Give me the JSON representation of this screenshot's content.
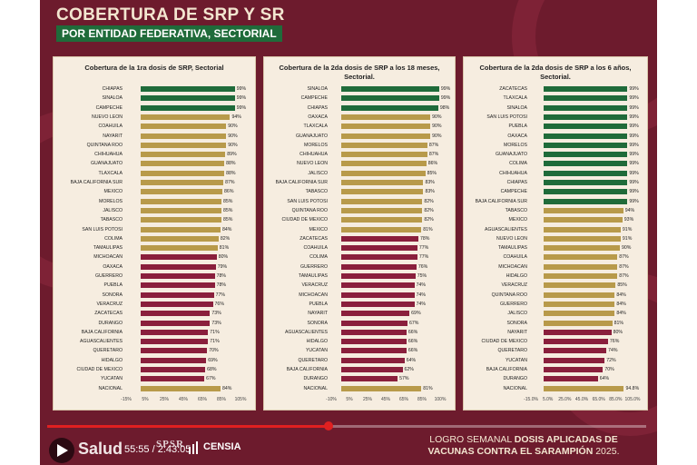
{
  "slide": {
    "title": "COBERTURA DE SRP Y SR",
    "subtitle": "POR ENTIDAD FEDERATIVA, SECTORIAL",
    "footer_prefix": "LOGRO SEMANAL ",
    "footer_bold1": "DOSIS APLICADAS DE",
    "footer_bold2": "VACUNAS CONTRA EL SARAMPIÓN",
    "footer_suffix": " 2025."
  },
  "player": {
    "channel": "Salud",
    "timecode": "55:55 / 2:43:05",
    "logo1": "SPSR",
    "logo2": "CENSIA",
    "progress_fraction": 0.47
  },
  "colors": {
    "green": "#1f6b3a",
    "gold": "#b89a4a",
    "maroon": "#8a1f3c"
  },
  "chart_data": [
    {
      "type": "bar",
      "title": "Cobertura de la 1ra dosis de SRP, Sectorial",
      "xticks": [
        "-15%",
        "5%",
        "25%",
        "45%",
        "65%",
        "85%",
        "105%"
      ],
      "xlim": [
        -15,
        105
      ],
      "categories": [
        "CHIAPAS",
        "SINALOA",
        "CAMPECHE",
        "NUEVO LEON",
        "COAHUILA",
        "NAYARIT",
        "QUINTANA ROO",
        "CHIHUAHUA",
        "GUANAJUATO",
        "TLAXCALA",
        "BAJA CALIFORNIA SUR",
        "MEXICO",
        "MORELOS",
        "JALISCO",
        "TABASCO",
        "SAN LUIS POTOSI",
        "COLIMA",
        "TAMAULIPAS",
        "MICHOACAN",
        "OAXACA",
        "GUERRERO",
        "PUEBLA",
        "SONORA",
        "VERACRUZ",
        "ZACATECAS",
        "DURANGO",
        "BAJA CALIFORNIA",
        "AGUASCALIENTES",
        "QUERETARO",
        "HIDALGO",
        "CIUDAD DE MEXICO",
        "YUCATAN",
        "NACIONAL"
      ],
      "values": [
        99,
        99,
        99,
        94,
        90,
        90,
        90,
        89,
        88,
        88,
        87,
        86,
        85,
        85,
        85,
        84,
        82,
        81,
        80,
        79,
        78,
        78,
        77,
        76,
        73,
        73,
        71,
        71,
        70,
        69,
        68,
        67,
        84
      ],
      "labels": [
        "99%",
        "99%",
        "99%",
        "94%",
        "90%",
        "90%",
        "90%",
        "89%",
        "88%",
        "88%",
        "87%",
        "86%",
        "85%",
        "85%",
        "85%",
        "84%",
        "82%",
        "81%",
        "80%",
        "79%",
        "78%",
        "78%",
        "77%",
        "76%",
        "73%",
        "73%",
        "71%",
        "71%",
        "70%",
        "69%",
        "68%",
        "67%",
        "84%"
      ],
      "colors": [
        "green",
        "green",
        "green",
        "gold",
        "gold",
        "gold",
        "gold",
        "gold",
        "gold",
        "gold",
        "gold",
        "gold",
        "gold",
        "gold",
        "gold",
        "gold",
        "gold",
        "gold",
        "maroon",
        "maroon",
        "maroon",
        "maroon",
        "maroon",
        "maroon",
        "maroon",
        "maroon",
        "maroon",
        "maroon",
        "maroon",
        "maroon",
        "maroon",
        "maroon",
        "gold"
      ]
    },
    {
      "type": "bar",
      "title": "Cobertura de la 2da dosis de SRP a los 18 meses, Sectorial.",
      "xticks": [
        "-10%",
        "5%",
        "25%",
        "45%",
        "65%",
        "85%",
        "100%"
      ],
      "xlim": [
        -10,
        100
      ],
      "categories": [
        "SINALOA",
        "CAMPECHE",
        "CHIAPAS",
        "OAXACA",
        "TLAXCALA",
        "GUANAJUATO",
        "MORELOS",
        "CHIHUAHUA",
        "NUEVO LEON",
        "JALISCO",
        "BAJA CALIFORNIA SUR",
        "TABASCO",
        "SAN LUIS POTOSI",
        "QUINTANA ROO",
        "CIUDAD DE MEXICO",
        "MEXICO",
        "ZACATECAS",
        "COAHUILA",
        "COLIMA",
        "GUERRERO",
        "TAMAULIPAS",
        "VERACRUZ",
        "MICHOACAN",
        "PUEBLA",
        "NAYARIT",
        "SONORA",
        "AGUASCALIENTES",
        "HIDALGO",
        "YUCATAN",
        "QUERETARO",
        "BAJA CALIFORNIA",
        "DURANGO",
        "NACIONAL"
      ],
      "values": [
        99,
        99,
        98,
        90,
        90,
        90,
        87,
        87,
        86,
        85,
        83,
        83,
        82,
        82,
        82,
        81,
        78,
        77,
        77,
        76,
        75,
        74,
        74,
        74,
        69,
        67,
        66,
        66,
        66,
        64,
        62,
        57,
        81
      ],
      "labels": [
        "99%",
        "99%",
        "98%",
        "90%",
        "90%",
        "90%",
        "87%",
        "87%",
        "86%",
        "85%",
        "83%",
        "83%",
        "82%",
        "82%",
        "82%",
        "81%",
        "78%",
        "77%",
        "77%",
        "76%",
        "75%",
        "74%",
        "74%",
        "74%",
        "69%",
        "67%",
        "66%",
        "66%",
        "66%",
        "64%",
        "62%",
        "57%",
        "81%"
      ],
      "colors": [
        "green",
        "green",
        "green",
        "gold",
        "gold",
        "gold",
        "gold",
        "gold",
        "gold",
        "gold",
        "gold",
        "gold",
        "gold",
        "gold",
        "gold",
        "gold",
        "maroon",
        "maroon",
        "maroon",
        "maroon",
        "maroon",
        "maroon",
        "maroon",
        "maroon",
        "maroon",
        "maroon",
        "maroon",
        "maroon",
        "maroon",
        "maroon",
        "maroon",
        "maroon",
        "gold"
      ]
    },
    {
      "type": "bar",
      "title": "Cobertura de la 2da dosis de SRP a los 6 años, Sectorial.",
      "xticks": [
        "-15.0%",
        "5.0%",
        "25.0%",
        "45.0%",
        "65.0%",
        "85.0%",
        "105.0%"
      ],
      "xlim": [
        -15,
        105
      ],
      "categories": [
        "ZACATECAS",
        "TLAXCALA",
        "SINALOA",
        "SAN LUIS POTOSI",
        "PUEBLA",
        "OAXACA",
        "MORELOS",
        "GUANAJUATO",
        "COLIMA",
        "CHIHUAHUA",
        "CHIAPAS",
        "CAMPECHE",
        "BAJA CALIFORNIA SUR",
        "TABASCO",
        "MEXICO",
        "AGUASCALIENTES",
        "NUEVO LEON",
        "TAMAULIPAS",
        "COAHUILA",
        "MICHOACAN",
        "HIDALGO",
        "VERACRUZ",
        "QUINTANA ROO",
        "GUERRERO",
        "JALISCO",
        "SONORA",
        "NAYARIT",
        "CIUDAD DE MEXICO",
        "QUERETARO",
        "YUCATAN",
        "BAJA CALIFORNIA",
        "DURANGO",
        "NACIONAL"
      ],
      "values": [
        99,
        99,
        99,
        99,
        99,
        99,
        99,
        99,
        99,
        99,
        99,
        99,
        99,
        94,
        93,
        91,
        91,
        90,
        87,
        87,
        87,
        85,
        84,
        84,
        84,
        81,
        80,
        76,
        74,
        72,
        70,
        64,
        94.8
      ],
      "labels": [
        "99%",
        "99%",
        "99%",
        "99%",
        "99%",
        "99%",
        "99%",
        "99%",
        "99%",
        "99%",
        "99%",
        "99%",
        "99%",
        "94%",
        "93%",
        "91%",
        "91%",
        "90%",
        "87%",
        "87%",
        "87%",
        "85%",
        "84%",
        "84%",
        "84%",
        "81%",
        "80%",
        "76%",
        "74%",
        "72%",
        "70%",
        "64%",
        "94.8%"
      ],
      "colors": [
        "green",
        "green",
        "green",
        "green",
        "green",
        "green",
        "green",
        "green",
        "green",
        "green",
        "green",
        "green",
        "green",
        "gold",
        "gold",
        "gold",
        "gold",
        "gold",
        "gold",
        "gold",
        "gold",
        "gold",
        "gold",
        "gold",
        "gold",
        "gold",
        "maroon",
        "maroon",
        "maroon",
        "maroon",
        "maroon",
        "maroon",
        "gold"
      ]
    }
  ]
}
